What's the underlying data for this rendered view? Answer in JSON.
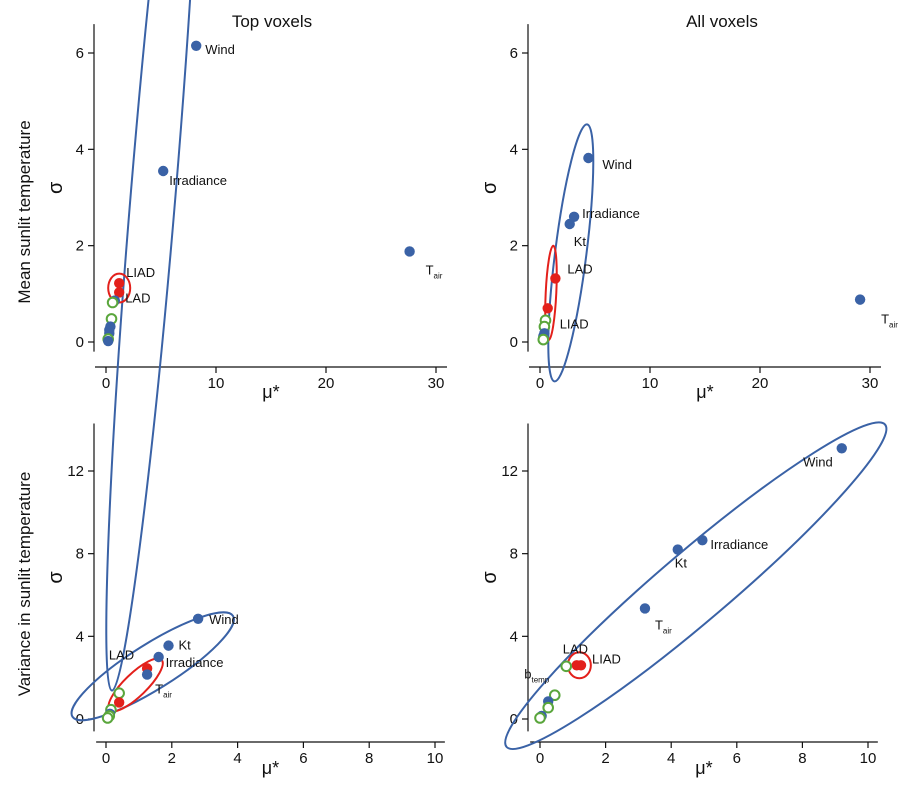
{
  "figure": {
    "column_titles": [
      "Top voxels",
      "All voxels"
    ],
    "row_labels": [
      "Mean sunlit temperature",
      "Variance in sunlit temperature"
    ]
  },
  "colors": {
    "axis": "#111111",
    "filled_point": "#3a62a6",
    "red_point": "#e3201b",
    "open_point": "#5aa63c",
    "blue_ellipse": "#3a62a6",
    "red_ellipse": "#e3201b"
  },
  "chart_data": [
    {
      "type": "scatter",
      "panel": "top-left",
      "xlabel": "μ*",
      "ylabel": "σ",
      "xlim": [
        -1,
        31
      ],
      "ylim": [
        -0.2,
        6.6
      ],
      "xticks": [
        0,
        10,
        20,
        30
      ],
      "yticks": [
        0,
        2,
        4,
        6
      ],
      "grid": false,
      "points": [
        {
          "x": 8.2,
          "y": 6.15,
          "style": "blue",
          "label": "Wind"
        },
        {
          "x": 5.2,
          "y": 3.55,
          "style": "blue",
          "label": "Irradiance"
        },
        {
          "x": 27.6,
          "y": 1.88,
          "style": "blue",
          "label": "T",
          "label_sub": "air"
        },
        {
          "x": 1.2,
          "y": 1.22,
          "style": "red",
          "label": "LIAD"
        },
        {
          "x": 1.2,
          "y": 1.03,
          "style": "red",
          "label": "LAD"
        },
        {
          "x": 0.8,
          "y": 0.86,
          "style": "blue"
        },
        {
          "x": 0.6,
          "y": 0.82,
          "style": "open"
        },
        {
          "x": 0.5,
          "y": 0.48,
          "style": "open"
        },
        {
          "x": 0.4,
          "y": 0.32,
          "style": "blue"
        },
        {
          "x": 0.3,
          "y": 0.25,
          "style": "blue"
        },
        {
          "x": 0.3,
          "y": 0.18,
          "style": "blue"
        },
        {
          "x": 0.2,
          "y": 0.06,
          "style": "open"
        },
        {
          "x": 0.2,
          "y": 0.02,
          "style": "blue"
        }
      ],
      "ellipses": [
        {
          "cx": 4.3,
          "cy": 3.1,
          "rx": 11.0,
          "ry": 1.15,
          "angle": -70.0,
          "style": "blue"
        },
        {
          "cx": 1.2,
          "cy": 1.12,
          "rx": 1.0,
          "ry": 0.3,
          "angle": 0,
          "style": "red"
        }
      ]
    },
    {
      "type": "scatter",
      "panel": "top-right",
      "xlabel": "μ*",
      "ylabel": "σ",
      "xlim": [
        -1,
        31
      ],
      "ylim": [
        -0.2,
        6.6
      ],
      "xticks": [
        0,
        10,
        20,
        30
      ],
      "yticks": [
        0,
        2,
        4,
        6
      ],
      "grid": false,
      "points": [
        {
          "x": 4.4,
          "y": 3.82,
          "style": "blue",
          "label": "Wind"
        },
        {
          "x": 3.1,
          "y": 2.6,
          "style": "blue",
          "label": "Irradiance"
        },
        {
          "x": 2.7,
          "y": 2.45,
          "style": "blue",
          "label": "Kt"
        },
        {
          "x": 29.1,
          "y": 0.88,
          "style": "blue",
          "label": "T",
          "label_sub": "air"
        },
        {
          "x": 1.4,
          "y": 1.32,
          "style": "red",
          "label": "LAD"
        },
        {
          "x": 0.7,
          "y": 0.7,
          "style": "red",
          "label": "LIAD"
        },
        {
          "x": 0.5,
          "y": 0.45,
          "style": "open"
        },
        {
          "x": 0.4,
          "y": 0.32,
          "style": "open"
        },
        {
          "x": 0.4,
          "y": 0.18,
          "style": "blue"
        },
        {
          "x": 0.3,
          "y": 0.12,
          "style": "blue"
        },
        {
          "x": 0.3,
          "y": 0.05,
          "style": "open"
        }
      ],
      "ellipses": [
        {
          "cx": 2.8,
          "cy": 1.85,
          "rx": 3.05,
          "ry": 0.62,
          "angle": -61.0,
          "style": "blue"
        },
        {
          "cx": 1.0,
          "cy": 1.02,
          "rx": 1.0,
          "ry": 0.36,
          "angle": -78.0,
          "style": "red"
        }
      ]
    },
    {
      "type": "scatter",
      "panel": "bottom-left",
      "xlabel": "μ*",
      "ylabel": "σ",
      "xlim": [
        -0.3,
        10.3
      ],
      "ylim": [
        -0.6,
        14.3
      ],
      "xticks": [
        0,
        2,
        4,
        6,
        8,
        10
      ],
      "yticks": [
        0,
        4,
        8,
        12
      ],
      "grid": false,
      "points": [
        {
          "x": 2.8,
          "y": 4.85,
          "style": "blue",
          "label": "Wind"
        },
        {
          "x": 1.9,
          "y": 3.55,
          "style": "blue",
          "label": "Kt"
        },
        {
          "x": 1.6,
          "y": 3.0,
          "style": "blue",
          "label": "Irradiance"
        },
        {
          "x": 1.25,
          "y": 2.45,
          "style": "red",
          "label": "LAD"
        },
        {
          "x": 1.25,
          "y": 2.15,
          "style": "blue",
          "label": "T",
          "label_sub": "air"
        },
        {
          "x": 0.4,
          "y": 1.25,
          "style": "open"
        },
        {
          "x": 0.4,
          "y": 0.8,
          "style": "red"
        },
        {
          "x": 0.15,
          "y": 0.45,
          "style": "open"
        },
        {
          "x": 0.12,
          "y": 0.25,
          "style": "blue"
        },
        {
          "x": 0.1,
          "y": 0.15,
          "style": "open"
        },
        {
          "x": 0.05,
          "y": 0.05,
          "style": "open"
        }
      ],
      "ellipses": [
        {
          "cx": 1.42,
          "cy": 2.55,
          "rx": 3.45,
          "ry": 0.82,
          "angle": -45.0,
          "style": "blue"
        },
        {
          "cx": 0.9,
          "cy": 1.65,
          "rx": 1.45,
          "ry": 0.38,
          "angle": -57.0,
          "style": "red"
        }
      ]
    },
    {
      "type": "scatter",
      "panel": "bottom-right",
      "xlabel": "μ*",
      "ylabel": "σ",
      "xlim": [
        -0.3,
        10.3
      ],
      "ylim": [
        -0.6,
        14.3
      ],
      "xticks": [
        0,
        2,
        4,
        6,
        8,
        10
      ],
      "yticks": [
        0,
        4,
        8,
        12
      ],
      "grid": false,
      "points": [
        {
          "x": 9.2,
          "y": 13.1,
          "style": "blue",
          "label": "Wind"
        },
        {
          "x": 4.95,
          "y": 8.65,
          "style": "blue",
          "label": "Irradiance"
        },
        {
          "x": 4.2,
          "y": 8.2,
          "style": "blue",
          "label": "Kt"
        },
        {
          "x": 3.2,
          "y": 5.35,
          "style": "blue",
          "label": "T",
          "label_sub": "air"
        },
        {
          "x": 1.25,
          "y": 2.6,
          "style": "red",
          "label": "LIAD"
        },
        {
          "x": 1.12,
          "y": 2.6,
          "style": "red",
          "label": "LAD"
        },
        {
          "x": 0.8,
          "y": 2.55,
          "style": "open",
          "label": "b",
          "label_sub": "temp"
        },
        {
          "x": 0.45,
          "y": 1.15,
          "style": "open"
        },
        {
          "x": 0.25,
          "y": 0.85,
          "style": "blue"
        },
        {
          "x": 0.25,
          "y": 0.55,
          "style": "open"
        },
        {
          "x": 0.05,
          "y": 0.15,
          "style": "blue"
        },
        {
          "x": 0.0,
          "y": 0.05,
          "style": "open"
        }
      ],
      "ellipses": [
        {
          "cx": 4.75,
          "cy": 6.45,
          "rx": 9.7,
          "ry": 1.2,
          "angle": -53.5,
          "style": "blue"
        },
        {
          "cx": 1.2,
          "cy": 2.6,
          "rx": 0.35,
          "ry": 0.63,
          "angle": 0,
          "style": "red"
        }
      ]
    }
  ]
}
